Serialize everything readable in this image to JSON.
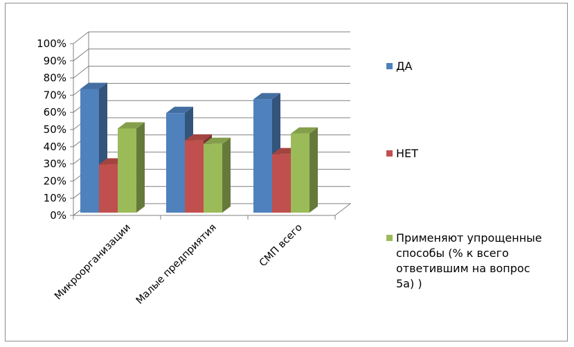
{
  "chart_data": {
    "type": "bar",
    "categories": [
      "Микроорганизации",
      "Малые предприятия",
      "СМП всего"
    ],
    "series": [
      {
        "name": "ДА",
        "values": [
          72,
          58,
          66
        ],
        "color": "#4f81bd"
      },
      {
        "name": "НЕТ",
        "values": [
          28,
          42,
          34
        ],
        "color": "#c0504d"
      },
      {
        "name": "Применяют упрощенные способы (% к всего ответившим на вопрос 5а) )",
        "values": [
          49,
          40,
          46
        ],
        "color": "#9bbb59"
      }
    ],
    "legend_lines": [
      [
        "ДА"
      ],
      [
        "НЕТ"
      ],
      [
        "Применяют упрощенные",
        "способы (% к всего",
        "ответившим на вопрос",
        "5а) )"
      ]
    ],
    "yticks": [
      "0%",
      "10%",
      "20%",
      "30%",
      "40%",
      "50%",
      "60%",
      "70%",
      "80%",
      "90%",
      "100%"
    ],
    "ylim": [
      0,
      100
    ],
    "grid": true,
    "legend_position": "right",
    "style": "3d-clustered-column"
  }
}
